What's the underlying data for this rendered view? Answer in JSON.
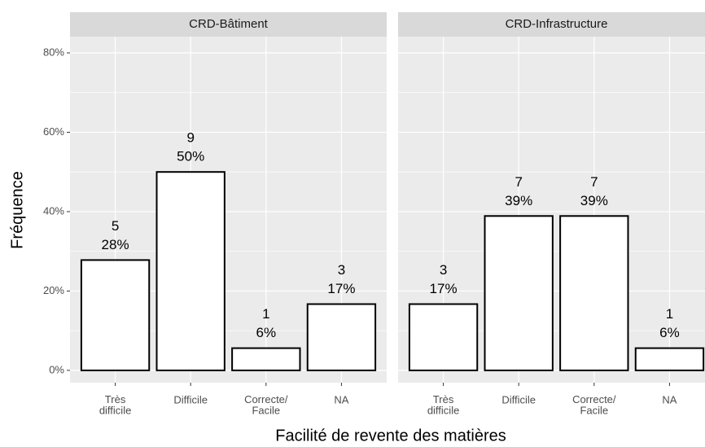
{
  "y_label": "Fréquence",
  "x_label": "Facilité de revente des matières",
  "chart_data": [
    {
      "type": "bar",
      "title": "CRD-Bâtiment",
      "categories": [
        "Très\ndifficile",
        "Difficile",
        "Correcte/\nFacile",
        "NA"
      ],
      "values": [
        27.8,
        50,
        5.6,
        16.7
      ],
      "value_labels": [
        "28%",
        "50%",
        "6%",
        "17%"
      ],
      "counts": [
        5,
        9,
        1,
        3
      ],
      "color": "#ffffff",
      "edge_color": "#000000",
      "ylim": [
        -3.1,
        84.1
      ],
      "yticks": [
        {
          "value": 0,
          "label": "0%"
        },
        {
          "value": 20,
          "label": "20%"
        },
        {
          "value": 40,
          "label": "40%"
        },
        {
          "value": 60,
          "label": "60%"
        },
        {
          "value": 80,
          "label": "80%"
        }
      ],
      "minor_yticks": [
        10,
        30,
        50,
        70
      ],
      "grid": true
    },
    {
      "type": "bar",
      "title": "CRD-Infrastructure",
      "categories": [
        "Très\ndifficile",
        "Difficile",
        "Correcte/\nFacile",
        "NA"
      ],
      "values": [
        16.7,
        38.9,
        38.9,
        5.6
      ],
      "value_labels": [
        "17%",
        "39%",
        "39%",
        "6%"
      ],
      "counts": [
        3,
        7,
        7,
        1
      ],
      "color": "#ffffff",
      "edge_color": "#000000",
      "ylim": [
        -3.1,
        84.1
      ],
      "yticks": [
        {
          "value": 0,
          "label": "0%"
        },
        {
          "value": 20,
          "label": "20%"
        },
        {
          "value": 40,
          "label": "40%"
        },
        {
          "value": 60,
          "label": "60%"
        },
        {
          "value": 80,
          "label": "80%"
        }
      ],
      "minor_yticks": [
        10,
        30,
        50,
        70
      ],
      "grid": true
    }
  ]
}
